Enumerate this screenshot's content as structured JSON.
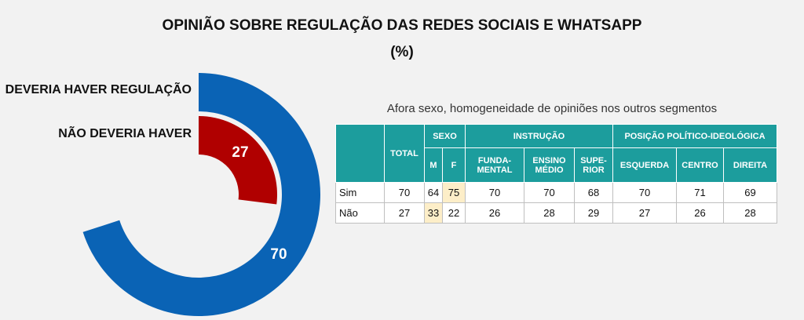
{
  "title_line1": "OPINIÃO SOBRE REGULAÇÃO DAS REDES SOCIAIS E WHATSAPP",
  "title_line2": "(%)",
  "chart_data": {
    "type": "radial-bar",
    "title": "OPINIÃO SOBRE REGULAÇÃO DAS REDES SOCIAIS E WHATSAPP (%)",
    "series": [
      {
        "name": "DEVERIA HAVER REGULAÇÃO",
        "value": 70,
        "color": "#0a63b5"
      },
      {
        "name": "NÃO DEVERIA HAVER",
        "value": 27,
        "color": "#b00000"
      }
    ],
    "max": 100
  },
  "table": {
    "subtitle": "Afora sexo, homogeneidade de opiniões nos outros segmentos",
    "groups": {
      "total": "TOTAL",
      "sexo": "SEXO",
      "instrucao": "INSTRUÇÃO",
      "posicao": "POSIÇÃO POLÍTICO-IDEOLÓGICA"
    },
    "columns": [
      "M",
      "F",
      "FUNDA-\nMENTAL",
      "ENSINO\nMÉDIO",
      "SUPE-\nRIOR",
      "ESQUERDA",
      "CENTRO",
      "DIREITA"
    ],
    "rows": [
      {
        "label": "Sim",
        "values": [
          "70",
          "64",
          "75",
          "70",
          "70",
          "68",
          "70",
          "71",
          "69"
        ]
      },
      {
        "label": "Não",
        "values": [
          "27",
          "33",
          "22",
          "26",
          "28",
          "29",
          "27",
          "26",
          "28"
        ]
      }
    ],
    "highlight_color": "#fdeec8"
  }
}
